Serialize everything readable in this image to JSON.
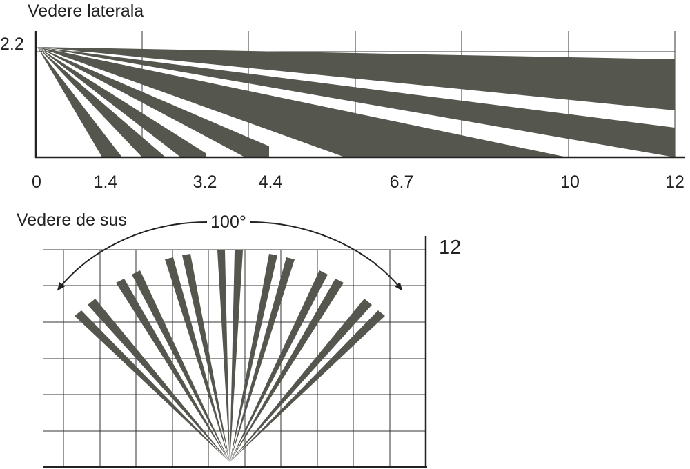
{
  "side_view": {
    "title": "Vedere laterala",
    "height_label": "2.2",
    "distance_labels": [
      "0",
      "1.4",
      "3.2",
      "4.4",
      "6.7",
      "10",
      "12"
    ]
  },
  "top_view": {
    "title": "Vedere de sus",
    "angle_label": "100°",
    "range_label": "12"
  },
  "colors": {
    "beam": "#55574f",
    "line": "#222222",
    "grid": "#333333",
    "background": "#ffffff"
  }
}
